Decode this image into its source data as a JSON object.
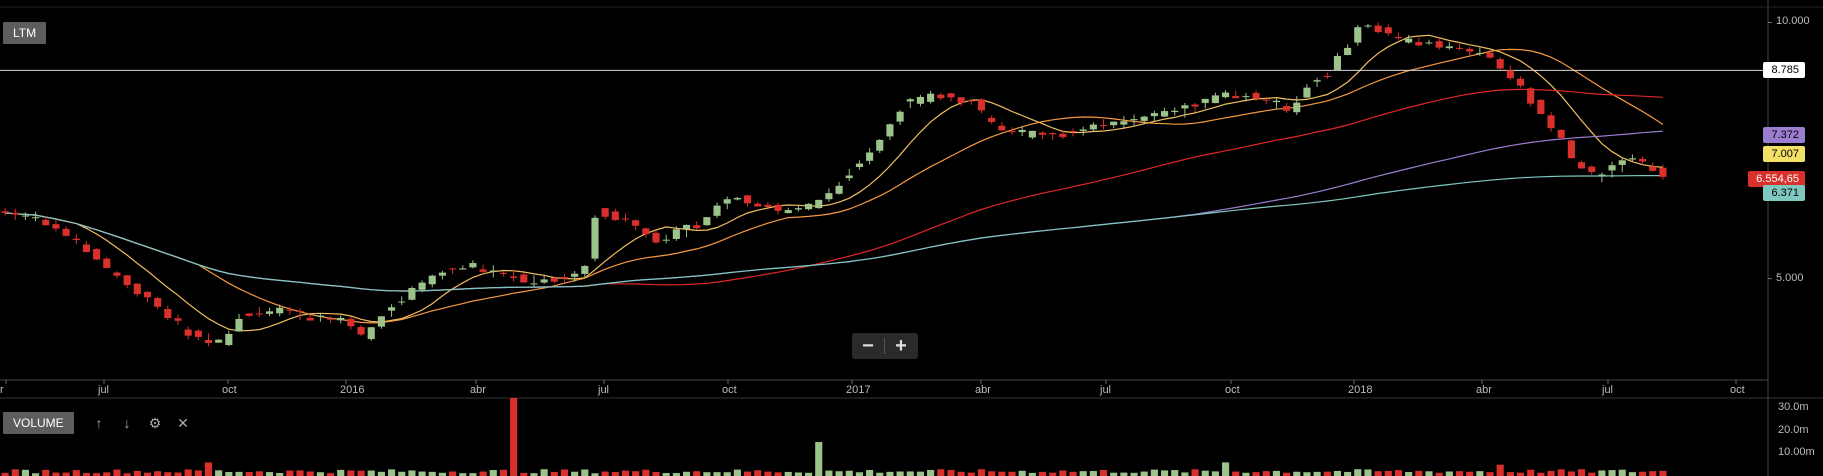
{
  "pane_labels": {
    "price": "LTM",
    "volume": "VOLUME"
  },
  "zoom": {
    "minus": "−",
    "plus": "+"
  },
  "volume_tools": {
    "up": "↑",
    "down": "↓",
    "settings": "⚙",
    "close": "✕"
  },
  "colors": {
    "up": "#9bc38a",
    "down": "#d9302c",
    "sma_short": "#f0c060",
    "sma_mid": "#f59a42",
    "sma_long": "#e02626",
    "purple": "#9b7ed0",
    "teal": "#7ec8c0",
    "hline": "#d8d8d8"
  },
  "chart_data": {
    "type": "candlestick",
    "price_axis": {
      "min": 3.8,
      "max": 10.4,
      "ticks": [
        "10.000",
        "5.000"
      ],
      "tick_values": [
        10.0,
        5.0
      ]
    },
    "x_labels": [
      "r",
      "jul",
      "oct",
      "2016",
      "abr",
      "jul",
      "oct",
      "2017",
      "abr",
      "jul",
      "oct",
      "2018",
      "abr",
      "jul",
      "oct"
    ],
    "price_tags": [
      {
        "label": "8.785",
        "value": 8.785,
        "color": "#ffffff"
      },
      {
        "label": "7.372",
        "value": 7.372,
        "color": "#9b7ed0"
      },
      {
        "label": "7.007",
        "value": 7.007,
        "color": "#f2e067"
      },
      {
        "label": "6.554,65",
        "value": 6.5546,
        "color": "#d9302c"
      },
      {
        "label": "6.371",
        "value": 6.371,
        "color": "#7ec8c0"
      }
    ],
    "horizontal_line": 8.785,
    "close_anchors": [
      [
        0,
        6.0
      ],
      [
        20,
        5.9
      ],
      [
        40,
        5.5
      ],
      [
        60,
        5.0
      ],
      [
        80,
        4.6
      ],
      [
        95,
        4.3
      ],
      [
        110,
        4.2
      ],
      [
        120,
        4.55
      ],
      [
        140,
        4.6
      ],
      [
        155,
        4.5
      ],
      [
        170,
        4.45
      ],
      [
        180,
        4.25
      ],
      [
        190,
        4.55
      ],
      [
        200,
        4.75
      ],
      [
        215,
        5.05
      ],
      [
        230,
        5.2
      ],
      [
        245,
        5.1
      ],
      [
        262,
        4.95
      ],
      [
        275,
        5.0
      ],
      [
        288,
        5.05
      ],
      [
        295,
        6.0
      ],
      [
        310,
        5.85
      ],
      [
        325,
        5.55
      ],
      [
        345,
        5.8
      ],
      [
        360,
        6.25
      ],
      [
        372,
        6.15
      ],
      [
        385,
        6.0
      ],
      [
        400,
        6.1
      ],
      [
        410,
        6.35
      ],
      [
        420,
        6.7
      ],
      [
        433,
        7.2
      ],
      [
        445,
        8.0
      ],
      [
        460,
        8.2
      ],
      [
        470,
        8.15
      ],
      [
        480,
        8.05
      ],
      [
        490,
        7.55
      ],
      [
        505,
        7.4
      ],
      [
        520,
        7.35
      ],
      [
        540,
        7.6
      ],
      [
        560,
        7.7
      ],
      [
        580,
        7.85
      ],
      [
        595,
        8.1
      ],
      [
        605,
        8.25
      ],
      [
        615,
        8.2
      ],
      [
        625,
        8.1
      ],
      [
        635,
        7.9
      ],
      [
        645,
        8.45
      ],
      [
        655,
        8.75
      ],
      [
        665,
        9.5
      ],
      [
        670,
        9.95
      ],
      [
        680,
        9.8
      ],
      [
        690,
        9.55
      ],
      [
        700,
        9.45
      ],
      [
        720,
        9.35
      ],
      [
        735,
        9.1
      ],
      [
        745,
        8.55
      ],
      [
        755,
        8.05
      ],
      [
        765,
        7.5
      ],
      [
        775,
        6.9
      ],
      [
        785,
        6.6
      ],
      [
        795,
        6.75
      ],
      [
        805,
        6.95
      ],
      [
        815,
        6.7
      ],
      [
        822,
        6.4
      ]
    ],
    "volume_axis": {
      "max": 30.0,
      "ticks": [
        "30.0m",
        "20.0m",
        "10.00m"
      ],
      "tick_values": [
        30.0,
        20.0,
        10.0
      ]
    },
    "volume_spikes": [
      [
        100,
        6.0
      ],
      [
        250,
        38.0
      ],
      [
        400,
        15.0
      ],
      [
        600,
        6.0
      ],
      [
        735,
        5.0
      ]
    ]
  }
}
